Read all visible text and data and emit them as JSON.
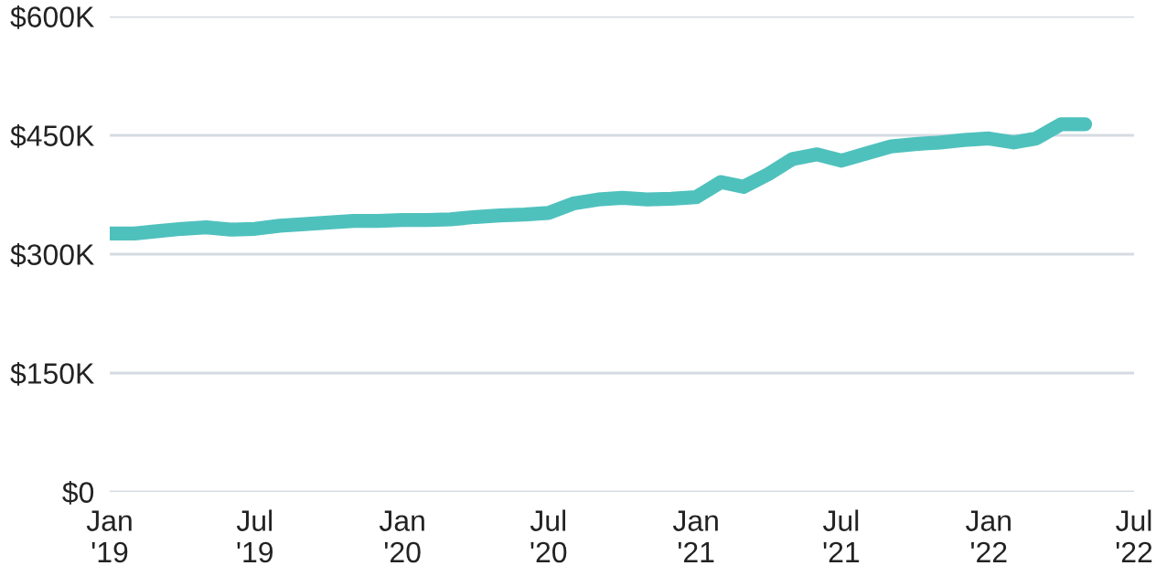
{
  "chart_data": {
    "type": "line",
    "x": [
      "2019-01",
      "2019-02",
      "2019-03",
      "2019-04",
      "2019-05",
      "2019-06",
      "2019-07",
      "2019-08",
      "2019-09",
      "2019-10",
      "2019-11",
      "2019-12",
      "2020-01",
      "2020-02",
      "2020-03",
      "2020-04",
      "2020-05",
      "2020-06",
      "2020-07",
      "2020-08",
      "2020-09",
      "2020-10",
      "2020-11",
      "2020-12",
      "2021-01",
      "2021-02",
      "2021-03",
      "2021-04",
      "2021-05",
      "2021-06",
      "2021-07",
      "2021-08",
      "2021-09",
      "2021-10",
      "2021-11",
      "2021-12",
      "2022-01",
      "2022-02",
      "2022-03",
      "2022-04",
      "2022-05"
    ],
    "series": [
      {
        "color": "#4fc1bd",
        "values": [
          326000,
          326000,
          329000,
          332000,
          334000,
          331000,
          332000,
          336000,
          338000,
          340000,
          342000,
          342000,
          343000,
          343000,
          344000,
          347000,
          349000,
          350000,
          352000,
          364000,
          369000,
          371000,
          369000,
          370000,
          372000,
          391000,
          385000,
          401000,
          420000,
          426000,
          418000,
          427000,
          436000,
          439000,
          441000,
          444000,
          446000,
          441000,
          446000,
          464000,
          464000
        ]
      }
    ],
    "ylim": [
      0,
      600000
    ],
    "yticks": [
      {
        "value": 0,
        "label": "$0"
      },
      {
        "value": 150000,
        "label": "$150K"
      },
      {
        "value": 300000,
        "label": "$300K"
      },
      {
        "value": 450000,
        "label": "$450K"
      },
      {
        "value": 600000,
        "label": "$600K"
      }
    ],
    "xlim": [
      "2019-01",
      "2022-07"
    ],
    "xticks": [
      {
        "value": "2019-01",
        "label": "Jan\n'19"
      },
      {
        "value": "2019-07",
        "label": "Jul\n'19"
      },
      {
        "value": "2020-01",
        "label": "Jan\n'20"
      },
      {
        "value": "2020-07",
        "label": "Jul\n'20"
      },
      {
        "value": "2021-01",
        "label": "Jan\n'21"
      },
      {
        "value": "2021-07",
        "label": "Jul\n'21"
      },
      {
        "value": "2022-01",
        "label": "Jan\n'22"
      },
      {
        "value": "2022-07",
        "label": "Jul\n'22"
      }
    ],
    "grid": "y",
    "marker": "none",
    "line_style": "solid"
  }
}
